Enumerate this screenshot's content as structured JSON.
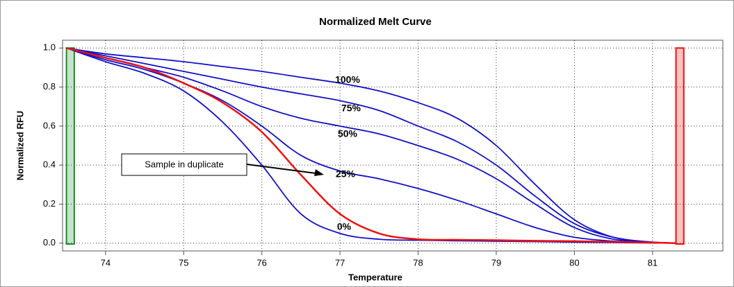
{
  "chart_data": {
    "type": "line",
    "title": "Normalized Melt Curve",
    "x_label": "Temperature",
    "y_label": "Normalized RFU",
    "x": [
      73.5,
      74,
      74.5,
      75,
      75.5,
      76,
      76.5,
      77,
      77.5,
      78,
      78.5,
      79,
      79.5,
      80,
      80.5,
      81,
      81.3
    ],
    "series": [
      {
        "name": "100%",
        "color": "#1010c8",
        "values": [
          1.0,
          0.97,
          0.95,
          0.93,
          0.905,
          0.88,
          0.85,
          0.82,
          0.78,
          0.72,
          0.64,
          0.5,
          0.3,
          0.12,
          0.03,
          0.005,
          0.0
        ]
      },
      {
        "name": "75%",
        "color": "#1010c8",
        "values": [
          1.0,
          0.96,
          0.92,
          0.88,
          0.84,
          0.8,
          0.765,
          0.73,
          0.68,
          0.6,
          0.52,
          0.4,
          0.24,
          0.1,
          0.03,
          0.005,
          0.0
        ]
      },
      {
        "name": "50%",
        "color": "#1010c8",
        "values": [
          1.0,
          0.95,
          0.9,
          0.85,
          0.78,
          0.7,
          0.64,
          0.6,
          0.56,
          0.5,
          0.43,
          0.33,
          0.2,
          0.08,
          0.02,
          0.005,
          0.0
        ]
      },
      {
        "name": "25%",
        "color": "#1010c8",
        "values": [
          1.0,
          0.94,
          0.89,
          0.82,
          0.73,
          0.6,
          0.45,
          0.37,
          0.33,
          0.28,
          0.22,
          0.15,
          0.08,
          0.03,
          0.01,
          0.003,
          0.0
        ]
      },
      {
        "name": "0%",
        "color": "#1010c8",
        "values": [
          1.0,
          0.93,
          0.87,
          0.78,
          0.62,
          0.4,
          0.15,
          0.05,
          0.02,
          0.015,
          0.012,
          0.01,
          0.008,
          0.005,
          0.003,
          0.001,
          0.0
        ]
      },
      {
        "color": "#ee1010",
        "values": [
          1.0,
          0.95,
          0.9,
          0.82,
          0.72,
          0.57,
          0.35,
          0.15,
          0.05,
          0.02,
          0.017,
          0.015,
          0.012,
          0.01,
          0.006,
          0.003,
          0.0
        ]
      }
    ],
    "annotation": "Sample in duplicate",
    "regions": [
      {
        "start": 73.5,
        "end": 73.6,
        "color": "#1a8a2a"
      },
      {
        "start": 81.3,
        "end": 81.4,
        "color": "#ee1010"
      }
    ],
    "xlim": [
      73.45,
      81.9
    ],
    "ylim": [
      -0.04,
      1.04
    ],
    "xticks": [
      74,
      75,
      76,
      77,
      78,
      79,
      80,
      81
    ],
    "yticks": [
      {
        "value": 0,
        "label": "0.0"
      },
      {
        "value": 0.2,
        "label": "0.2"
      },
      {
        "value": 0.4,
        "label": "0.4"
      },
      {
        "value": 0.6,
        "label": "0.6"
      },
      {
        "value": 0.8,
        "label": "0.8"
      },
      {
        "value": 1,
        "label": "1.0"
      }
    ],
    "grid": true
  }
}
